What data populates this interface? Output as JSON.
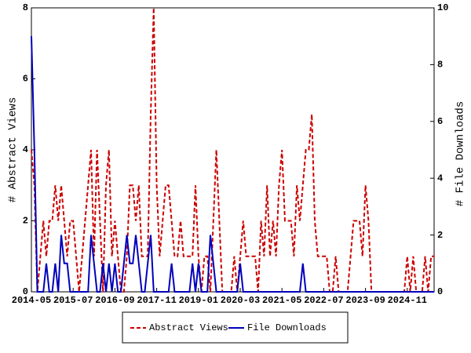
{
  "chart_data": {
    "type": "line",
    "y_label": "# Abstract Views",
    "y2_label": "# File Downloads",
    "categories": [
      "2014-05",
      null,
      null,
      null,
      null,
      null,
      null,
      null,
      null,
      null,
      null,
      null,
      null,
      null,
      "2015-07",
      null,
      null,
      null,
      null,
      null,
      null,
      null,
      null,
      null,
      null,
      null,
      null,
      null,
      "2016-09",
      null,
      null,
      null,
      null,
      null,
      null,
      null,
      null,
      null,
      null,
      null,
      null,
      null,
      "2017-11",
      null,
      null,
      null,
      null,
      null,
      null,
      null,
      null,
      null,
      null,
      null,
      null,
      null,
      "2019-01",
      null,
      null,
      null,
      null,
      null,
      null,
      null,
      null,
      null,
      null,
      null,
      null,
      null,
      "2020-03",
      null,
      null,
      null,
      null,
      null,
      null,
      null,
      null,
      null,
      null,
      null,
      null,
      null,
      "2021-05",
      null,
      null,
      null,
      null,
      null,
      null,
      null,
      null,
      null,
      null,
      null,
      null,
      null,
      "2022-07",
      null,
      null,
      null,
      null,
      null,
      null,
      null,
      null,
      null,
      null,
      null,
      null,
      null,
      "2023-09",
      null,
      null,
      null,
      null,
      null,
      null,
      null,
      null,
      null,
      null,
      null,
      null,
      null,
      "2024-11",
      null,
      null,
      null,
      null,
      null,
      null,
      null,
      null,
      null
    ],
    "series": [
      {
        "name": "Abstract Views",
        "color": "#cc0000",
        "dashed": true,
        "values": [
          4,
          3,
          0,
          1,
          2,
          1,
          2,
          2,
          3,
          2,
          3,
          2,
          1,
          2,
          2,
          1,
          0,
          1,
          2,
          3,
          4,
          1,
          4,
          2,
          0,
          3,
          4,
          1,
          2,
          1,
          0,
          0,
          1,
          3,
          3,
          2,
          3,
          1,
          1,
          1,
          5,
          8,
          3,
          1,
          2,
          3,
          3,
          2,
          1,
          1,
          2,
          1,
          1,
          1,
          1,
          3,
          1,
          0,
          1,
          1,
          0,
          2,
          4,
          2,
          0,
          0,
          0,
          0,
          1,
          0,
          1,
          2,
          1,
          1,
          1,
          1,
          0,
          2,
          1,
          3,
          1,
          2,
          1,
          3,
          4,
          2,
          2,
          2,
          1,
          3,
          2,
          3,
          4,
          4,
          5,
          2,
          1,
          1,
          1,
          1,
          0,
          0,
          1,
          0,
          0,
          0,
          0,
          1,
          2,
          2,
          2,
          1,
          3,
          2,
          0,
          0,
          0,
          0,
          0,
          0,
          0,
          0,
          0,
          0,
          0,
          0,
          1,
          0,
          1,
          0,
          0,
          0,
          1,
          0,
          1,
          1
        ]
      },
      {
        "name": "File Downloads",
        "color": "#0000bb",
        "dashed": false,
        "axis": "y2",
        "values": [
          9,
          5,
          0,
          0,
          0,
          1,
          0,
          0,
          1,
          0,
          2,
          1,
          1,
          0,
          0,
          0,
          0,
          0,
          0,
          0,
          2,
          1,
          0,
          0,
          1,
          0,
          1,
          0,
          1,
          0,
          0,
          1,
          2,
          1,
          1,
          2,
          1,
          0,
          0,
          1,
          2,
          0,
          0,
          0,
          0,
          0,
          0,
          1,
          0,
          0,
          0,
          0,
          0,
          0,
          1,
          0,
          1,
          0,
          0,
          0,
          2,
          1,
          0,
          0,
          0,
          0,
          0,
          0,
          0,
          0,
          1,
          0,
          0,
          0,
          0,
          0,
          0,
          0,
          0,
          0,
          0,
          0,
          0,
          0,
          0,
          0,
          0,
          0,
          0,
          0,
          0,
          1,
          0,
          0,
          0,
          0,
          0,
          0,
          0,
          0,
          0,
          0,
          0,
          0,
          0,
          0,
          0,
          0,
          0,
          0,
          0,
          0,
          0,
          0,
          0,
          0,
          0,
          0,
          0,
          0,
          0,
          0,
          0,
          0,
          0,
          0,
          0,
          0,
          0,
          0,
          0,
          0,
          0,
          0,
          0,
          0
        ]
      }
    ],
    "ylim": [
      0,
      8
    ],
    "yticks": [
      0,
      2,
      4,
      6,
      8
    ],
    "y2lim": [
      0,
      10
    ],
    "y2ticks": [
      0,
      2,
      4,
      6,
      8,
      10
    ],
    "legend": "bottom"
  }
}
